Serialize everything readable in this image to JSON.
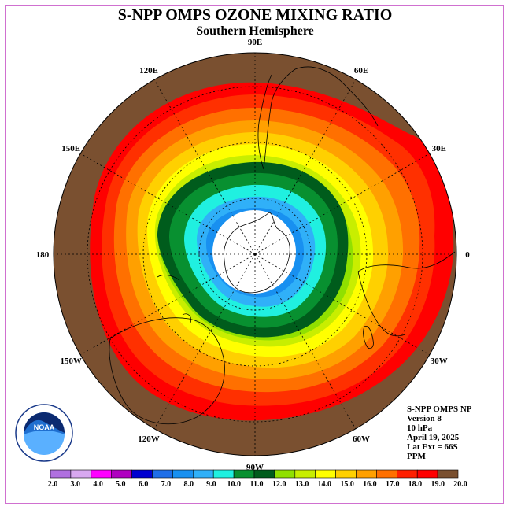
{
  "title": "S-NPP OMPS OZONE MIXING RATIO",
  "subtitle": "Southern Hemisphere",
  "info": {
    "instrument": "S-NPP OMPS NP",
    "version": "Version 8",
    "level": "10 hPa",
    "date": "April 19, 2025",
    "lat_ext": "Lat Ext = 66S",
    "units": "PPM"
  },
  "logo_text": "NOAA",
  "longitude_labels": [
    {
      "text": "90W",
      "angle": 180
    },
    {
      "text": "60W",
      "angle": 150
    },
    {
      "text": "30W",
      "angle": 120
    },
    {
      "text": "0",
      "angle": 90
    },
    {
      "text": "30E",
      "angle": 60
    },
    {
      "text": "60E",
      "angle": 30
    },
    {
      "text": "90E",
      "angle": 0
    },
    {
      "text": "120E",
      "angle": -30
    },
    {
      "text": "150E",
      "angle": -60
    },
    {
      "text": "180",
      "angle": -90
    },
    {
      "text": "150W",
      "angle": -120
    },
    {
      "text": "120W",
      "angle": -150
    }
  ],
  "colorbar": {
    "levels": [
      "2.0",
      "3.0",
      "4.0",
      "5.0",
      "6.0",
      "7.0",
      "8.0",
      "9.0",
      "10.0",
      "11.0",
      "12.0",
      "13.0",
      "14.0",
      "15.0",
      "16.0",
      "17.0",
      "18.0",
      "19.0",
      "20.0"
    ],
    "colors": [
      "#b070e0",
      "#d8a8f0",
      "#ff00ff",
      "#b000c0",
      "#0000d0",
      "#1e6ee8",
      "#1890f0",
      "#30b0f8",
      "#20f0e0",
      "#089030",
      "#005c1c",
      "#90e000",
      "#c8ee00",
      "#ffff00",
      "#ffd000",
      "#ffa000",
      "#ff7000",
      "#ff2000",
      "#ff0000",
      "#7a5030"
    ]
  },
  "map": {
    "field_colors": [
      "#7a5030",
      "#ff0000",
      "#ff3000",
      "#ff7000",
      "#ffa000",
      "#ffd000",
      "#ffff00",
      "#c8ee00",
      "#90e000",
      "#005c1c",
      "#089030",
      "#20f0e0",
      "#30b0f8",
      "#1890f0"
    ]
  }
}
